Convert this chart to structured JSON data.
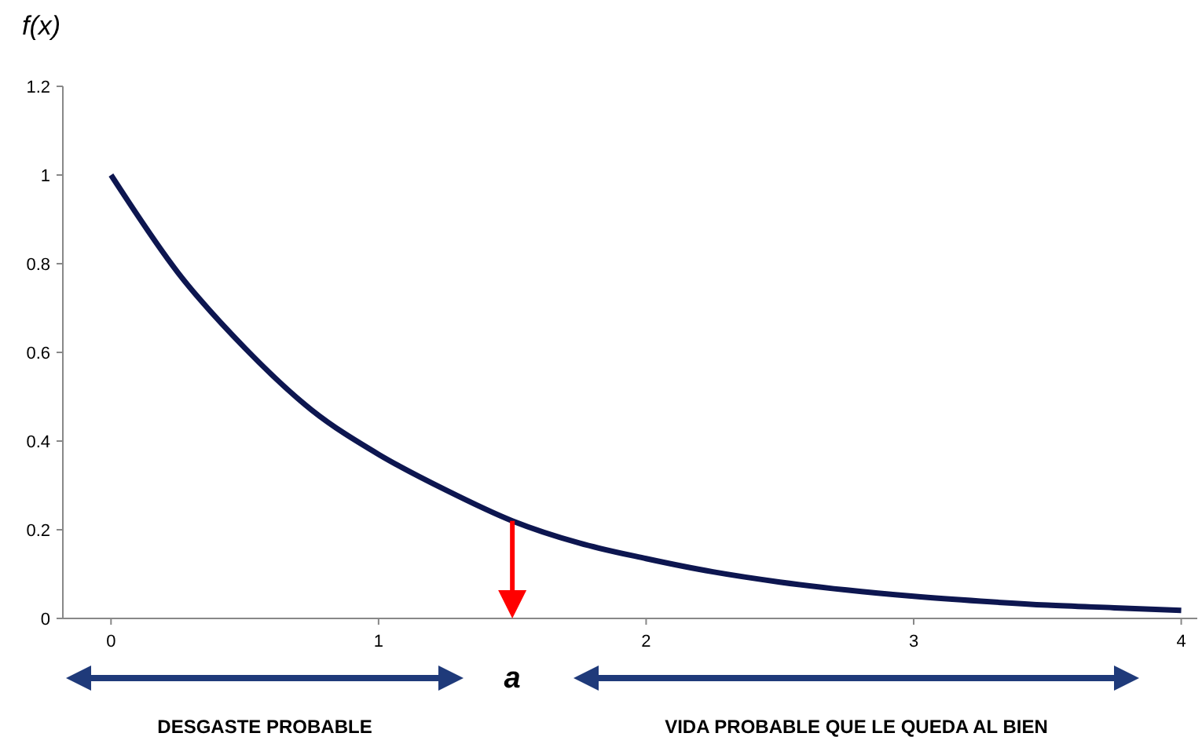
{
  "chart_data": {
    "type": "line",
    "ylabel": "f(x)",
    "x": [
      0,
      0.25,
      0.5,
      0.75,
      1,
      1.25,
      1.5,
      1.75,
      2,
      2.25,
      2.5,
      2.75,
      3,
      3.25,
      3.5,
      3.75,
      4
    ],
    "series": [
      {
        "color": "#0d1650",
        "values": [
          1,
          0.78,
          0.61,
          0.47,
          0.37,
          0.29,
          0.22,
          0.17,
          0.135,
          0.105,
          0.082,
          0.064,
          0.05,
          0.039,
          0.03,
          0.024,
          0.018
        ]
      }
    ],
    "xlim": [
      -0.18,
      4.06
    ],
    "ylim": [
      0,
      1.2
    ],
    "xticks": [
      0,
      1,
      2,
      3,
      4
    ],
    "yticks": [
      0,
      0.2,
      0.4,
      0.6,
      0.8,
      1,
      1.2
    ],
    "grid": false,
    "marker": "none",
    "line_style": "solid",
    "ref_lines": [
      {
        "axis": "x",
        "value": 1.5,
        "label": "a",
        "color": "#ff0000"
      }
    ],
    "annotations": [
      "DESGASTE PROBABLE",
      "VIDA PROBABLE QUE LE QUEDA AL BIEN"
    ]
  }
}
